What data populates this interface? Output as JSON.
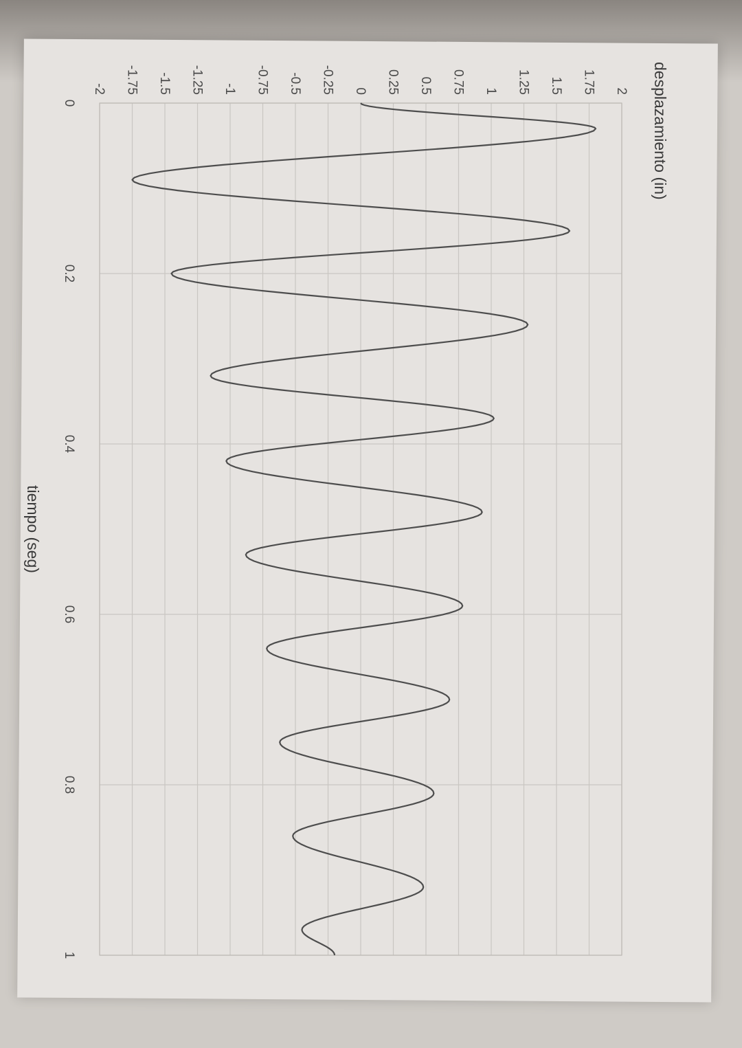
{
  "chart_data": {
    "type": "line",
    "title": "",
    "xlabel": "tiempo (seg)",
    "ylabel": "desplazamiento (in)",
    "xlim": [
      0,
      1
    ],
    "ylim": [
      -2,
      2
    ],
    "grid": true,
    "x_ticks": [
      "0",
      "0.2",
      "0.4",
      "0.6",
      "0.8",
      "1"
    ],
    "y_ticks": [
      "2",
      "1.75",
      "1.5",
      "1.25",
      "1",
      "0.75",
      "0.5",
      "0.25",
      "0",
      "-0.25",
      "-0.5",
      "-0.75",
      "-1",
      "-1.25",
      "-1.5",
      "-1.75",
      "-2"
    ],
    "series": [
      {
        "color": "#4d4d4d",
        "peaks": [
          [
            0.0,
            0.0
          ],
          [
            0.03,
            1.8
          ],
          [
            0.09,
            -1.75
          ],
          [
            0.15,
            1.6
          ],
          [
            0.2,
            -1.45
          ],
          [
            0.26,
            1.28
          ],
          [
            0.32,
            -1.15
          ],
          [
            0.37,
            1.02
          ],
          [
            0.42,
            -1.03
          ],
          [
            0.48,
            0.93
          ],
          [
            0.53,
            -0.88
          ],
          [
            0.59,
            0.78
          ],
          [
            0.64,
            -0.72
          ],
          [
            0.7,
            0.68
          ],
          [
            0.75,
            -0.62
          ],
          [
            0.81,
            0.56
          ],
          [
            0.86,
            -0.52
          ],
          [
            0.92,
            0.48
          ],
          [
            0.97,
            -0.45
          ],
          [
            1.0,
            -0.2
          ]
        ],
        "crossings_per_half_cycle": 1
      }
    ]
  },
  "colors": {
    "paper": "#e6e3e0",
    "grid": "#c9c6c2",
    "line": "#4d4d4d",
    "text": "#4a4a4a"
  }
}
